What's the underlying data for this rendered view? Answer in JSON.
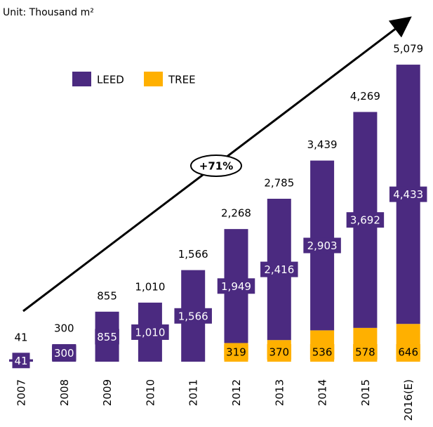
{
  "chart_data": {
    "type": "stacked_bar",
    "subtitle": "Unit: Thousand m²",
    "annotation": "+71%",
    "categories": [
      "2007",
      "2008",
      "2009",
      "2010",
      "2011",
      "2012",
      "2013",
      "2014",
      "2015",
      "2016(E)"
    ],
    "series": [
      {
        "name": "LEED",
        "color": "#4b2a80",
        "values": [
          41,
          300,
          855,
          1010,
          1566,
          1949,
          2416,
          2903,
          3692,
          4433
        ],
        "value_labels": [
          "41",
          "300",
          "855",
          "1,010",
          "1,566",
          "1,949",
          "2,416",
          "2,903",
          "3,692",
          "4,433"
        ]
      },
      {
        "name": "TREE",
        "color": "#ffb000",
        "values": [
          null,
          null,
          null,
          null,
          null,
          319,
          370,
          536,
          578,
          646
        ],
        "value_labels": [
          null,
          null,
          null,
          null,
          null,
          "319",
          "370",
          "536",
          "578",
          "646"
        ]
      }
    ],
    "total_labels": [
      "41",
      "300",
      "855",
      "1,010",
      "1,566",
      "2,268",
      "2,785",
      "3,439",
      "4,269",
      "5,079"
    ],
    "ylim": [
      0,
      5500
    ],
    "legend": "top-left"
  }
}
